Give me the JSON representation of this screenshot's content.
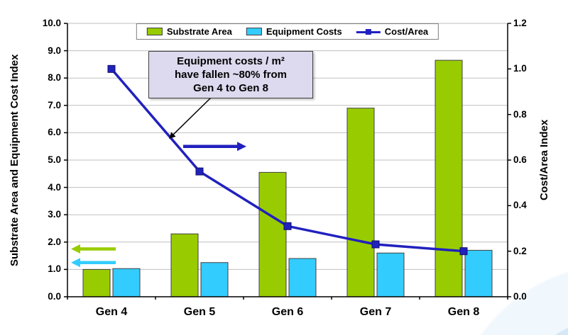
{
  "chart_data": {
    "type": "bar",
    "categories": [
      "Gen 4",
      "Gen 5",
      "Gen 6",
      "Gen 7",
      "Gen 8"
    ],
    "bar_series": [
      {
        "name": "Substrate Area",
        "color": "#99CC00",
        "axis": "left",
        "values": [
          1.0,
          2.3,
          4.55,
          6.9,
          8.65
        ]
      },
      {
        "name": "Equipment Costs",
        "color": "#33CCFF",
        "axis": "left",
        "values": [
          1.03,
          1.25,
          1.4,
          1.6,
          1.7
        ]
      }
    ],
    "line_series": [
      {
        "name": "Cost/Area",
        "color": "#2121BE",
        "axis": "right",
        "values": [
          1.0,
          0.55,
          0.31,
          0.23,
          0.2
        ]
      }
    ],
    "left_axis": {
      "label": "Substrate Area and Equipment Cost Index",
      "min": 0,
      "max": 10,
      "step": 1
    },
    "right_axis": {
      "label": "Cost/Area Index",
      "min": 0,
      "max": 1.2,
      "step": 0.2
    },
    "grid": true,
    "legend_position": "top-center",
    "annotation": {
      "lines": [
        "Equipment costs / m²",
        "have fallen ~80% from",
        "Gen 4 to Gen 8"
      ],
      "background": "#DDD9EE"
    },
    "axis_arrows": [
      {
        "series": "Substrate Area",
        "color": "#99CC00",
        "direction": "left",
        "left_axis_value": 1.75
      },
      {
        "series": "Equipment Costs",
        "color": "#33CCFF",
        "direction": "left",
        "left_axis_value": 1.25
      },
      {
        "series": "Cost/Area",
        "color": "#2121BE",
        "direction": "right",
        "left_axis_value": 5.5
      }
    ]
  },
  "colors": {
    "grid": "#BFBFBF",
    "axis": "#000000",
    "bar_outline": "#404040",
    "legend_border": "#7F7F7F"
  }
}
